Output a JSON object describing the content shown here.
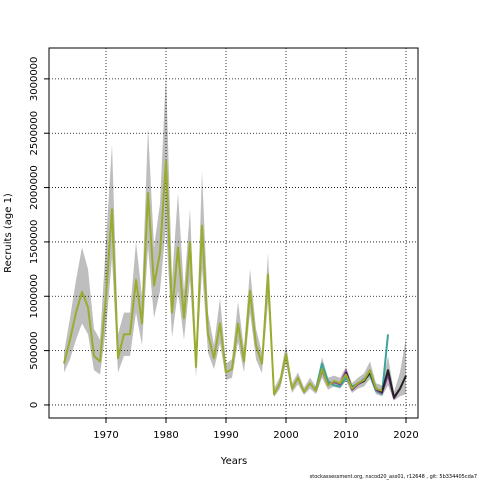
{
  "chart_data": {
    "type": "line",
    "xlabel": "Years",
    "ylabel": "Recruits (age 1)",
    "footer": "stockassessment.org, nscod20_ass01, r12648 , git: 5b334405cda7",
    "x": [
      1963,
      1964,
      1965,
      1966,
      1967,
      1968,
      1969,
      1970,
      1971,
      1972,
      1973,
      1974,
      1975,
      1976,
      1977,
      1978,
      1979,
      1980,
      1981,
      1982,
      1983,
      1984,
      1985,
      1986,
      1987,
      1988,
      1989,
      1990,
      1991,
      1992,
      1993,
      1994,
      1995,
      1996,
      1997,
      1998,
      1999,
      2000,
      2001,
      2002,
      2003,
      2004,
      2005,
      2006,
      2007,
      2008,
      2009,
      2010,
      2011,
      2012,
      2013,
      2014,
      2015,
      2016,
      2017,
      2018,
      2019,
      2020
    ],
    "interval": {
      "color": "#bebebe",
      "upper": [
        480000,
        800000,
        1150000,
        1450000,
        1250000,
        700000,
        600000,
        1500000,
        2400000,
        650000,
        850000,
        850000,
        1500000,
        1000000,
        2550000,
        1450000,
        1850000,
        3050000,
        1150000,
        1950000,
        1050000,
        1800000,
        450000,
        2150000,
        850000,
        550000,
        980000,
        380000,
        420000,
        950000,
        520000,
        1250000,
        700000,
        480000,
        1400000,
        150000,
        260000,
        560000,
        200000,
        300000,
        160000,
        250000,
        170000,
        440000,
        250000,
        270000,
        250000,
        350000,
        200000,
        250000,
        290000,
        400000,
        200000,
        180000,
        450000,
        120000,
        300000,
        620000
      ],
      "lower": [
        300000,
        420000,
        600000,
        750000,
        650000,
        320000,
        280000,
        700000,
        1350000,
        300000,
        450000,
        450000,
        850000,
        550000,
        1450000,
        800000,
        1050000,
        1650000,
        620000,
        1050000,
        600000,
        1150000,
        260000,
        1250000,
        480000,
        330000,
        570000,
        230000,
        250000,
        580000,
        300000,
        850000,
        420000,
        290000,
        950000,
        70000,
        150000,
        380000,
        110000,
        190000,
        90000,
        150000,
        100000,
        250000,
        140000,
        170000,
        150000,
        220000,
        110000,
        150000,
        170000,
        240000,
        100000,
        80000,
        180000,
        40000,
        80000,
        100000
      ]
    },
    "series": [
      {
        "color": "#3aa39a",
        "values": [
          null,
          null,
          null,
          null,
          null,
          null,
          null,
          null,
          null,
          null,
          null,
          null,
          null,
          null,
          null,
          null,
          null,
          null,
          null,
          null,
          null,
          null,
          null,
          null,
          null,
          null,
          null,
          null,
          null,
          null,
          null,
          null,
          null,
          null,
          null,
          null,
          null,
          null,
          null,
          null,
          null,
          null,
          150000,
          380000,
          220000,
          180000,
          170000,
          250000,
          170000,
          190000,
          240000,
          280000,
          130000,
          100000,
          650000,
          null,
          null,
          null
        ]
      },
      {
        "color": "#8a3a9e",
        "values": [
          null,
          null,
          null,
          null,
          null,
          null,
          null,
          null,
          null,
          null,
          null,
          null,
          null,
          null,
          null,
          null,
          null,
          null,
          null,
          null,
          null,
          null,
          null,
          null,
          null,
          null,
          null,
          null,
          null,
          null,
          null,
          null,
          null,
          null,
          null,
          null,
          null,
          null,
          null,
          null,
          null,
          null,
          130000,
          320000,
          190000,
          210000,
          190000,
          310000,
          140000,
          190000,
          220000,
          310000,
          140000,
          110000,
          280000,
          60000,
          150000,
          null
        ]
      },
      {
        "color": "#222222",
        "values": [
          null,
          null,
          null,
          null,
          null,
          null,
          null,
          null,
          null,
          null,
          null,
          null,
          null,
          null,
          null,
          null,
          null,
          null,
          null,
          null,
          null,
          null,
          null,
          null,
          null,
          null,
          null,
          null,
          null,
          null,
          null,
          null,
          null,
          null,
          null,
          null,
          null,
          null,
          null,
          null,
          null,
          null,
          null,
          null,
          null,
          null,
          null,
          300000,
          150000,
          200000,
          220000,
          300000,
          150000,
          120000,
          320000,
          70000,
          150000,
          270000
        ]
      },
      {
        "color": "#9aab2e",
        "values": [
          380000,
          600000,
          850000,
          1040000,
          900000,
          450000,
          400000,
          1000000,
          1800000,
          430000,
          650000,
          650000,
          1150000,
          750000,
          1950000,
          1100000,
          1400000,
          2250000,
          850000,
          1450000,
          800000,
          1500000,
          350000,
          1650000,
          650000,
          430000,
          750000,
          300000,
          330000,
          750000,
          400000,
          1050000,
          550000,
          380000,
          1200000,
          100000,
          200000,
          470000,
          150000,
          250000,
          120000,
          200000,
          130000,
          330000,
          180000,
          220000,
          200000,
          280000,
          150000,
          200000,
          230000,
          320000,
          150000,
          130000,
          null,
          null,
          null,
          null
        ]
      }
    ],
    "xlim": [
      1960.5,
      2022
    ],
    "xticks": [
      1970,
      1980,
      1990,
      2000,
      2010,
      2020
    ],
    "ylim": [
      -120000,
      3284000
    ],
    "yticks": [
      0,
      500000,
      1000000,
      1500000,
      2000000,
      2500000,
      3000000
    ],
    "grid": true
  }
}
